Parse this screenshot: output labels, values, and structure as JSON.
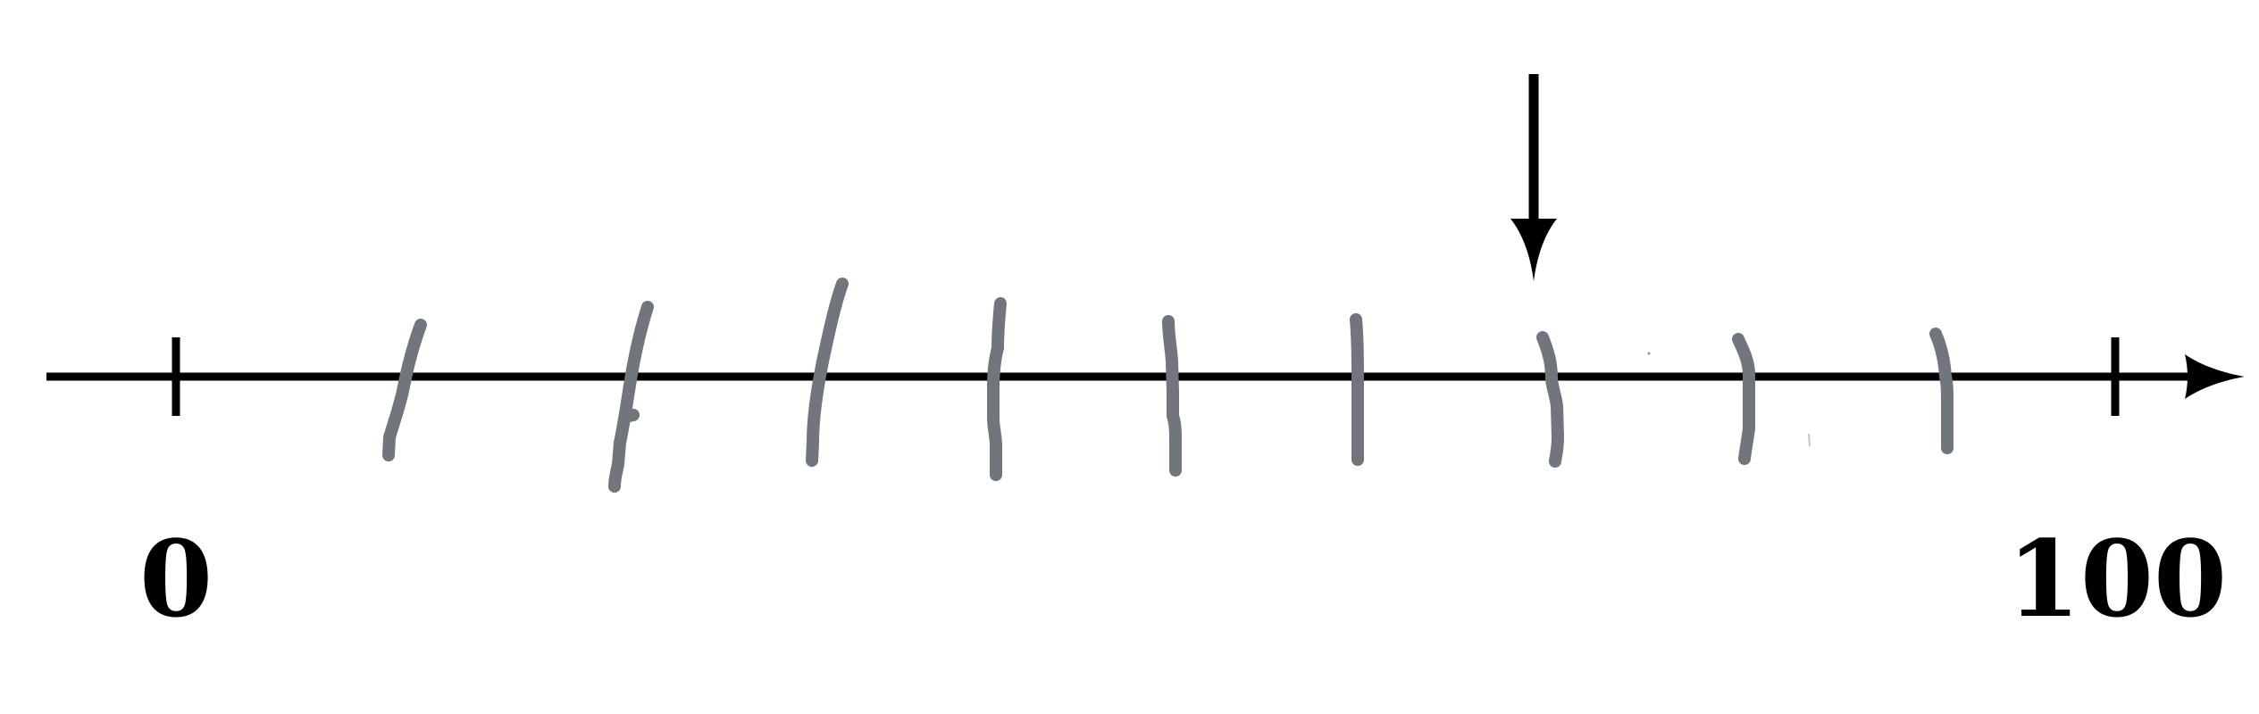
{
  "number_line": {
    "start_value": 0,
    "end_value": 100,
    "start_label": "0",
    "end_label": "100",
    "hand_drawn_partition_marks": 9,
    "segments": 10,
    "arrow_points_to_value": 70,
    "axis_color": "#000000",
    "hand_marks_color": "#70767B"
  }
}
